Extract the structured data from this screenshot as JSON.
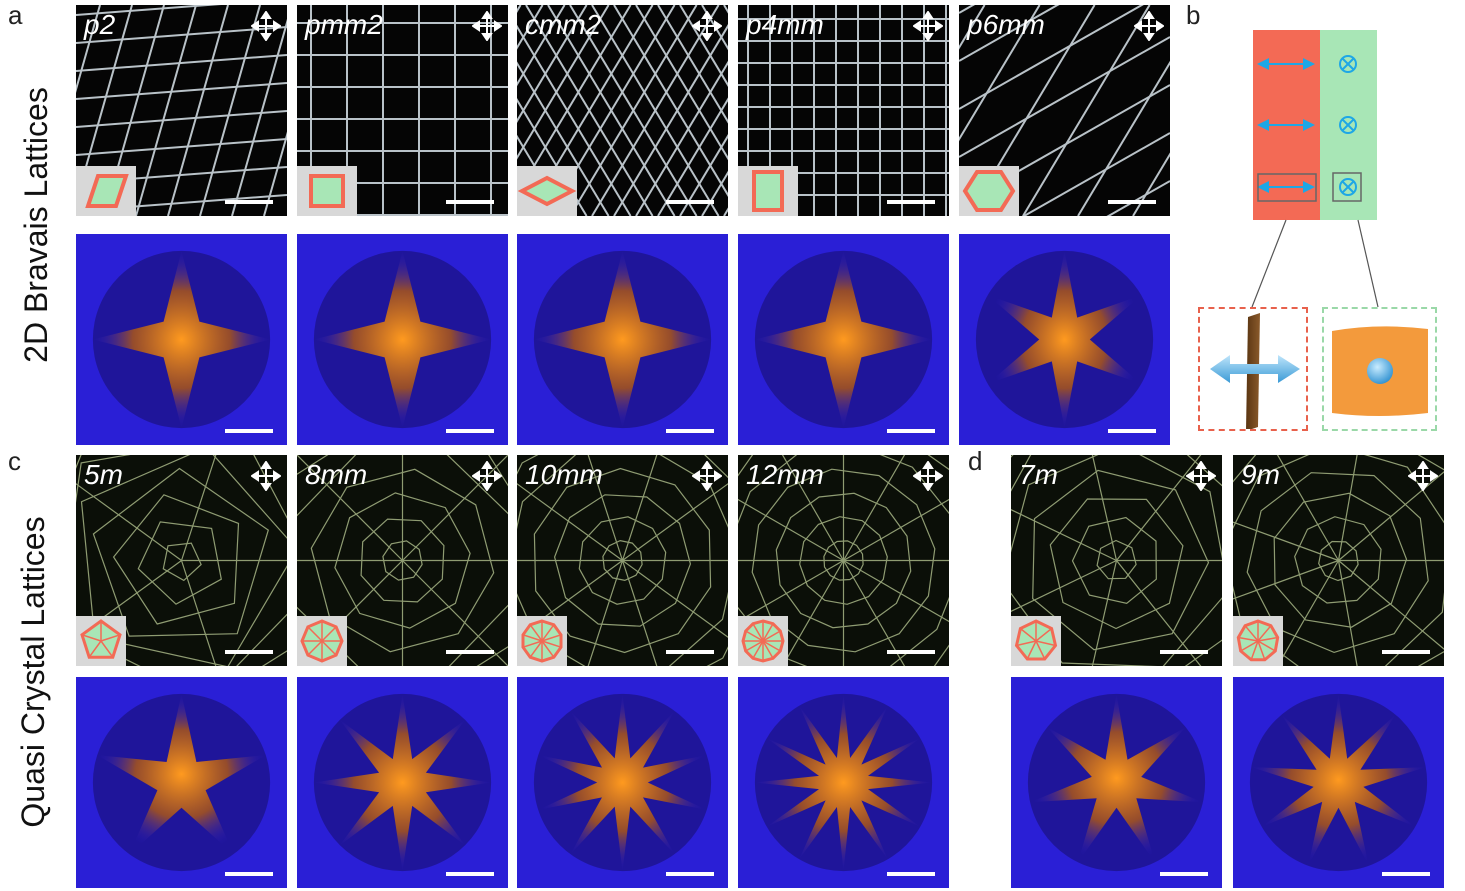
{
  "labels": {
    "a": "a",
    "b": "b",
    "c": "c",
    "d": "d"
  },
  "row_titles": {
    "bravais": "2D Bravais Lattices",
    "quasi": "Quasi Crystal Lattices"
  },
  "bravais_panels": [
    "p2",
    "pmm2",
    "cmm2",
    "p4mm",
    "p6mm"
  ],
  "quasi_panels_c": [
    "5m",
    "8mm",
    "10mm",
    "12mm"
  ],
  "quasi_panels_d": [
    "7m",
    "9m"
  ],
  "colors": {
    "salmon": "#f36a55",
    "mint": "#a8e6b6",
    "fft_bg": "#2a1fd6",
    "fft_center": "#ff9a1f",
    "arrow_blue": "#1ea7e6"
  }
}
